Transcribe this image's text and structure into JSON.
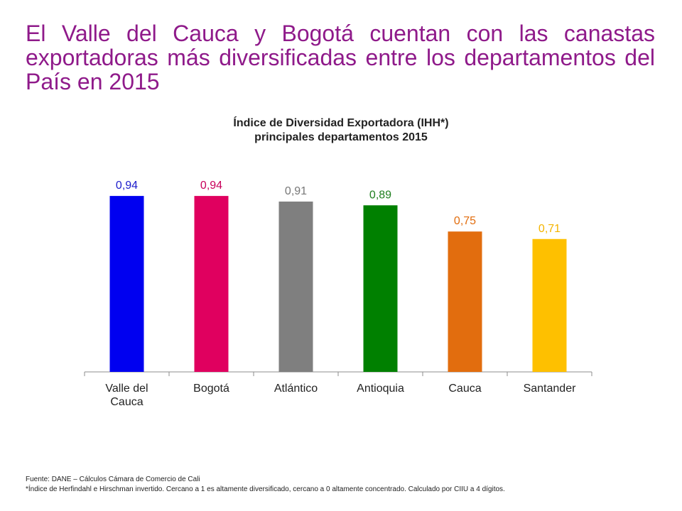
{
  "headline": "El Valle del Cauca y Bogotá cuentan con las canastas exportadoras más diversificadas entre los departamentos del País en 2015",
  "chart_data": {
    "type": "bar",
    "title_line1": "Índice de Diversidad Exportadora (IHH*)",
    "title_line2": "principales departamentos 2015",
    "categories": [
      "Valle del Cauca",
      "Bogotá",
      "Atlántico",
      "Antioquia",
      "Cauca",
      "Santander"
    ],
    "category_lines": [
      [
        "Valle del",
        "Cauca"
      ],
      [
        "Bogotá"
      ],
      [
        "Atlántico"
      ],
      [
        "Antioquia"
      ],
      [
        "Cauca"
      ],
      [
        "Santander"
      ]
    ],
    "values": [
      0.94,
      0.94,
      0.91,
      0.89,
      0.75,
      0.71
    ],
    "value_labels": [
      "0,94",
      "0,94",
      "0,91",
      "0,89",
      "0,75",
      "0,71"
    ],
    "colors": [
      "#0000f0",
      "#e0005f",
      "#7f7f7f",
      "#008000",
      "#e26d0e",
      "#fec000"
    ],
    "label_colors": [
      "#1c1ccc",
      "#c8005a",
      "#777777",
      "#1f7f1f",
      "#e26d0e",
      "#f4b400"
    ],
    "ylim": [
      0,
      1
    ],
    "grid": false,
    "legend": "none"
  },
  "footer": {
    "source": "Fuente: DANE – Cálculos Cámara de Comercio de Cali",
    "note": "*Índice de Herfindahl e Hirschman invertido. Cercano a 1 es altamente diversificado, cercano a 0 altamente concentrado. Calculado por CIIU a 4 dígitos."
  }
}
